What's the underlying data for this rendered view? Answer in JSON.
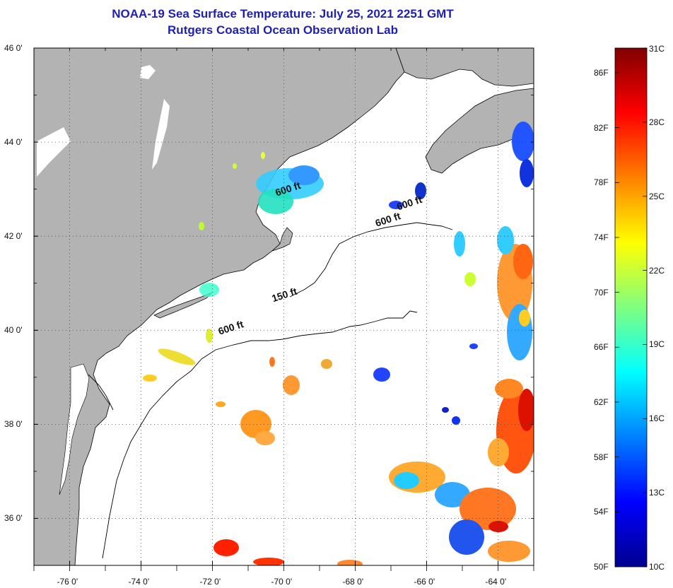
{
  "title": "NOAA-19 Sea Surface Temperature:  July 25, 2021 2251 GMT",
  "subtitle": "Rutgers Coastal Ocean Observation Lab",
  "map": {
    "lon_range": [
      -77,
      -63
    ],
    "lat_range": [
      35,
      46
    ],
    "lat_ticks": [
      {
        "value": 46,
        "label": "46 0'"
      },
      {
        "value": 44,
        "label": "44 0'"
      },
      {
        "value": 42,
        "label": "42 0'"
      },
      {
        "value": 40,
        "label": "40 0'"
      },
      {
        "value": 38,
        "label": "38 0'"
      },
      {
        "value": 36,
        "label": "36 0'"
      }
    ],
    "lon_ticks": [
      {
        "value": -76,
        "label": "-76 0'"
      },
      {
        "value": -74,
        "label": "-74 0'"
      },
      {
        "value": -72,
        "label": "-72 0'"
      },
      {
        "value": -70,
        "label": "-70 0'"
      },
      {
        "value": -68,
        "label": "-68 0'"
      },
      {
        "value": -66,
        "label": "-66 0'"
      },
      {
        "value": -64,
        "label": "-64 0'"
      }
    ],
    "contour_labels": [
      {
        "text": "600 ft",
        "lon": -70.2,
        "lat": 42.85
      },
      {
        "text": "600 ft",
        "lon": -66.8,
        "lat": 42.55
      },
      {
        "text": "600 ft",
        "lon": -67.4,
        "lat": 42.2
      },
      {
        "text": "150 ft",
        "lon": -70.3,
        "lat": 40.6
      },
      {
        "text": "600 ft",
        "lon": -71.8,
        "lat": 39.9
      }
    ],
    "land_color": "#b3b3b3",
    "grid": "dotted"
  },
  "colorbar": {
    "colors": [
      "#00008f",
      "#0000ff",
      "#0080ff",
      "#00ffff",
      "#80ff80",
      "#ffff00",
      "#ff8000",
      "#ff0000",
      "#800000"
    ],
    "min_c": 10,
    "max_c": 31,
    "celsius_labels": [
      {
        "value": 31,
        "label": "31C"
      },
      {
        "value": 28,
        "label": "28C"
      },
      {
        "value": 25,
        "label": "25C"
      },
      {
        "value": 22,
        "label": "22C"
      },
      {
        "value": 19,
        "label": "19C"
      },
      {
        "value": 16,
        "label": "16C"
      },
      {
        "value": 13,
        "label": "13C"
      },
      {
        "value": 10,
        "label": "10C"
      }
    ],
    "fahrenheit_labels": [
      {
        "value": 86,
        "label": "86F"
      },
      {
        "value": 82,
        "label": "82F"
      },
      {
        "value": 78,
        "label": "78F"
      },
      {
        "value": 74,
        "label": "74F"
      },
      {
        "value": 70,
        "label": "70F"
      },
      {
        "value": 66,
        "label": "66F"
      },
      {
        "value": 62,
        "label": "62F"
      },
      {
        "value": 58,
        "label": "58F"
      },
      {
        "value": 54,
        "label": "54F"
      },
      {
        "value": 50,
        "label": "50F"
      }
    ]
  }
}
